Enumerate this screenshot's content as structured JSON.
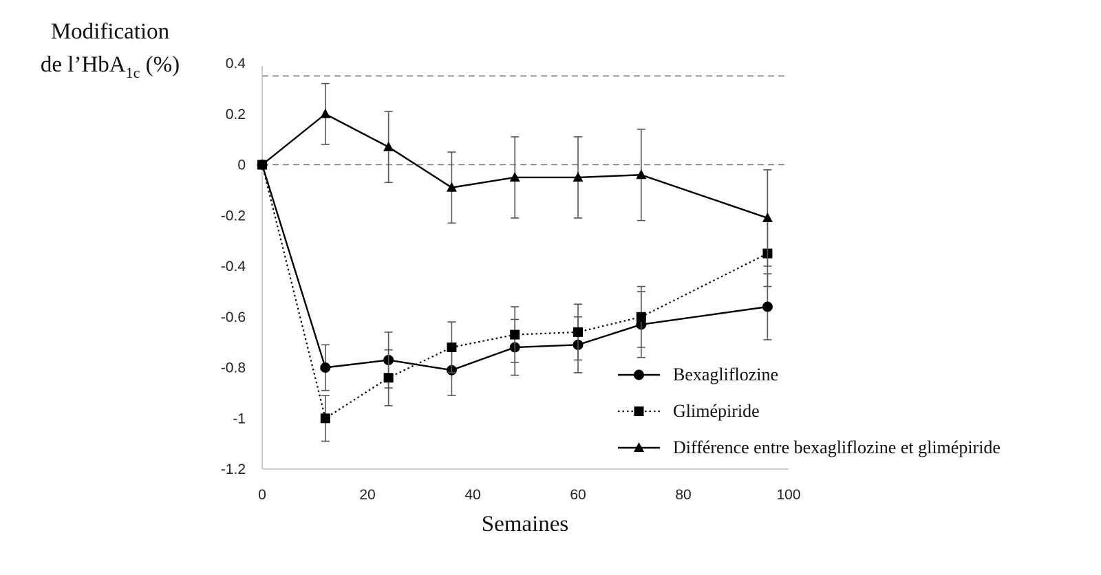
{
  "chart_data": {
    "type": "line",
    "ylabel_line1": "Modification",
    "ylabel_line2_prefix": "de l’HbA",
    "ylabel_line2_sub": "1c",
    "ylabel_line2_suffix": " (%)",
    "xlabel": "Semaines",
    "xlim": [
      0,
      100
    ],
    "ylim": [
      -1.2,
      0.4
    ],
    "xticks": [
      0,
      20,
      40,
      60,
      80,
      100
    ],
    "xtick_labels": [
      "0",
      "20",
      "40",
      "60",
      "80",
      "100"
    ],
    "yticks": [
      0.4,
      0.2,
      0,
      -0.2,
      -0.4,
      -0.6,
      -0.8,
      -1,
      -1.2
    ],
    "ytick_labels": [
      "0.4",
      "0.2",
      "0",
      "-0.2",
      "-0.4",
      "-0.6",
      "-0.8",
      "-1",
      "-1.2"
    ],
    "reference_lines": [
      0.35,
      0
    ],
    "legend_position": "bottom-right",
    "series": [
      {
        "name": "Bexagliflozine",
        "marker": "circle",
        "line_style": "solid",
        "x": [
          0,
          12,
          24,
          36,
          48,
          60,
          72,
          96
        ],
        "y": [
          0,
          -0.8,
          -0.77,
          -0.81,
          -0.72,
          -0.71,
          -0.63,
          -0.56
        ],
        "err_low": [
          0,
          -0.89,
          -0.88,
          -0.91,
          -0.83,
          -0.82,
          -0.76,
          -0.69
        ],
        "err_high": [
          0,
          -0.71,
          -0.66,
          -0.71,
          -0.61,
          -0.6,
          -0.5,
          -0.43
        ]
      },
      {
        "name": "Glimépiride",
        "marker": "square",
        "line_style": "dotted",
        "x": [
          0,
          12,
          24,
          36,
          48,
          60,
          72,
          96
        ],
        "y": [
          0,
          -1.0,
          -0.84,
          -0.72,
          -0.67,
          -0.66,
          -0.6,
          -0.35
        ],
        "err_low": [
          0,
          -1.09,
          -0.95,
          -0.82,
          -0.78,
          -0.77,
          -0.72,
          -0.48
        ],
        "err_high": [
          0,
          -0.91,
          -0.73,
          -0.62,
          -0.56,
          -0.55,
          -0.48,
          -0.22
        ]
      },
      {
        "name": "Différence entre bexagliflozine et glimépiride",
        "marker": "triangle",
        "line_style": "solid",
        "x": [
          0,
          12,
          24,
          36,
          48,
          60,
          72,
          96
        ],
        "y": [
          0,
          0.2,
          0.07,
          -0.09,
          -0.05,
          -0.05,
          -0.04,
          -0.21
        ],
        "err_low": [
          0,
          0.08,
          -0.07,
          -0.23,
          -0.21,
          -0.21,
          -0.22,
          -0.4
        ],
        "err_high": [
          0,
          0.32,
          0.21,
          0.05,
          0.11,
          0.11,
          0.14,
          -0.02
        ]
      }
    ]
  }
}
